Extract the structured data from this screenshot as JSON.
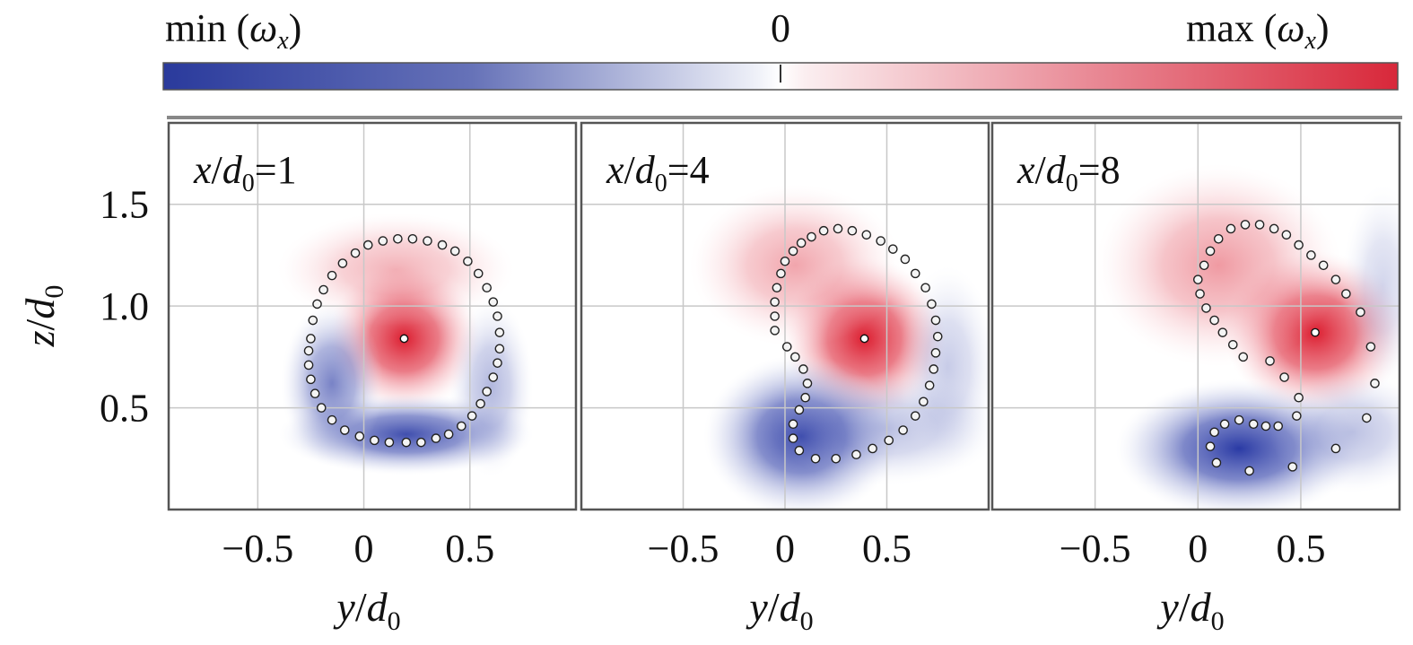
{
  "colorbar": {
    "min_label": "min (",
    "symbol": "ω",
    "subscript": "x",
    "close": ")",
    "zero_label": "0",
    "max_label": "max (",
    "neg_color": "#2838a0",
    "pos_color": "#d8283a"
  },
  "chart_data": [
    {
      "type": "heatmap",
      "panel_label": "x/d0=1",
      "title_var": "x/d",
      "title_sub": "0",
      "title_value": "=1",
      "xlabel": "y/d0",
      "ylabel": "z/d0",
      "xlim": [
        -0.92,
        1.0
      ],
      "ylim": [
        0.0,
        1.9
      ],
      "xticks": [
        -0.5,
        0,
        0.5
      ],
      "xtick_labels": [
        "−0.5",
        "0",
        "0.5"
      ],
      "yticks": [
        0.5,
        1.0,
        1.5
      ],
      "ytick_labels": [
        "0.5",
        "1.0",
        "1.5"
      ],
      "grid": true,
      "vortex_center": [
        0.19,
        0.84
      ],
      "vorticity_blobs": [
        {
          "sign": "positive",
          "center": [
            0.19,
            0.84
          ],
          "spread": [
            0.18,
            0.18
          ],
          "strength": 1.0
        },
        {
          "sign": "positive",
          "center": [
            0.15,
            1.18
          ],
          "spread": [
            0.28,
            0.14
          ],
          "strength": 0.35
        },
        {
          "sign": "negative",
          "center": [
            0.2,
            0.37
          ],
          "spread": [
            0.3,
            0.1
          ],
          "strength": 0.85
        },
        {
          "sign": "negative",
          "center": [
            -0.15,
            0.62
          ],
          "spread": [
            0.12,
            0.2
          ],
          "strength": 0.6
        },
        {
          "sign": "negative",
          "center": [
            0.6,
            0.6
          ],
          "spread": [
            0.1,
            0.22
          ],
          "strength": 0.35
        }
      ],
      "markers": [
        [
          -0.25,
          0.84
        ],
        [
          -0.24,
          0.93
        ],
        [
          -0.22,
          1.01
        ],
        [
          -0.19,
          1.08
        ],
        [
          -0.15,
          1.15
        ],
        [
          -0.1,
          1.21
        ],
        [
          -0.04,
          1.26
        ],
        [
          0.02,
          1.3
        ],
        [
          0.09,
          1.32
        ],
        [
          0.16,
          1.33
        ],
        [
          0.23,
          1.33
        ],
        [
          0.3,
          1.32
        ],
        [
          0.37,
          1.3
        ],
        [
          0.43,
          1.27
        ],
        [
          0.49,
          1.22
        ],
        [
          0.54,
          1.16
        ],
        [
          0.58,
          1.09
        ],
        [
          0.61,
          1.02
        ],
        [
          0.63,
          0.95
        ],
        [
          0.64,
          0.87
        ],
        [
          0.64,
          0.79
        ],
        [
          0.63,
          0.72
        ],
        [
          0.61,
          0.65
        ],
        [
          0.58,
          0.58
        ],
        [
          0.55,
          0.52
        ],
        [
          0.51,
          0.46
        ],
        [
          0.46,
          0.41
        ],
        [
          0.4,
          0.37
        ],
        [
          0.34,
          0.35
        ],
        [
          0.27,
          0.33
        ],
        [
          0.2,
          0.33
        ],
        [
          0.12,
          0.33
        ],
        [
          0.05,
          0.34
        ],
        [
          -0.02,
          0.36
        ],
        [
          -0.09,
          0.39
        ],
        [
          -0.15,
          0.44
        ],
        [
          -0.2,
          0.5
        ],
        [
          -0.23,
          0.57
        ],
        [
          -0.25,
          0.64
        ],
        [
          -0.26,
          0.71
        ],
        [
          -0.26,
          0.78
        ]
      ]
    },
    {
      "type": "heatmap",
      "panel_label": "x/d0=4",
      "title_var": "x/d",
      "title_sub": "0",
      "title_value": "=4",
      "xlabel": "y/d0",
      "ylabel": "z/d0",
      "xlim": [
        -1.0,
        1.0
      ],
      "ylim": [
        0.0,
        1.9
      ],
      "xticks": [
        -0.5,
        0,
        0.5
      ],
      "xtick_labels": [
        "−0.5",
        "0",
        "0.5"
      ],
      "yticks": [
        0.5,
        1.0,
        1.5
      ],
      "ytick_labels": [
        "0.5",
        "1.0",
        "1.5"
      ],
      "grid": true,
      "vortex_center": [
        0.39,
        0.84
      ],
      "vorticity_blobs": [
        {
          "sign": "positive",
          "center": [
            0.39,
            0.84
          ],
          "spread": [
            0.2,
            0.2
          ],
          "strength": 1.0
        },
        {
          "sign": "positive",
          "center": [
            0.05,
            1.2
          ],
          "spread": [
            0.26,
            0.2
          ],
          "strength": 0.4
        },
        {
          "sign": "negative",
          "center": [
            0.08,
            0.36
          ],
          "spread": [
            0.24,
            0.2
          ],
          "strength": 0.9
        },
        {
          "sign": "negative",
          "center": [
            0.5,
            0.4
          ],
          "spread": [
            0.28,
            0.14
          ],
          "strength": 0.3
        },
        {
          "sign": "negative",
          "center": [
            0.8,
            0.7
          ],
          "spread": [
            0.12,
            0.25
          ],
          "strength": 0.25
        }
      ],
      "markers": [
        [
          -0.05,
          0.88
        ],
        [
          -0.05,
          0.95
        ],
        [
          -0.05,
          1.02
        ],
        [
          -0.04,
          1.09
        ],
        [
          -0.02,
          1.16
        ],
        [
          0.0,
          1.22
        ],
        [
          0.04,
          1.27
        ],
        [
          0.08,
          1.31
        ],
        [
          0.13,
          1.34
        ],
        [
          0.19,
          1.37
        ],
        [
          0.26,
          1.38
        ],
        [
          0.33,
          1.37
        ],
        [
          0.4,
          1.35
        ],
        [
          0.47,
          1.32
        ],
        [
          0.53,
          1.28
        ],
        [
          0.59,
          1.23
        ],
        [
          0.64,
          1.16
        ],
        [
          0.69,
          1.09
        ],
        [
          0.72,
          1.01
        ],
        [
          0.74,
          0.93
        ],
        [
          0.75,
          0.85
        ],
        [
          0.74,
          0.77
        ],
        [
          0.73,
          0.69
        ],
        [
          0.71,
          0.61
        ],
        [
          0.68,
          0.53
        ],
        [
          0.64,
          0.46
        ],
        [
          0.58,
          0.39
        ],
        [
          0.51,
          0.34
        ],
        [
          0.43,
          0.3
        ],
        [
          0.35,
          0.27
        ],
        [
          0.25,
          0.25
        ],
        [
          0.15,
          0.25
        ],
        [
          0.07,
          0.29
        ],
        [
          0.04,
          0.35
        ],
        [
          0.04,
          0.42
        ],
        [
          0.07,
          0.49
        ],
        [
          0.1,
          0.55
        ],
        [
          0.11,
          0.62
        ],
        [
          0.09,
          0.69
        ],
        [
          0.05,
          0.75
        ],
        [
          0.01,
          0.8
        ]
      ]
    },
    {
      "type": "heatmap",
      "panel_label": "x/d0=8",
      "title_var": "x/d",
      "title_sub": "0",
      "title_value": "=8",
      "xlabel": "y/d0",
      "ylabel": "z/d0",
      "xlim": [
        -1.0,
        0.98
      ],
      "ylim": [
        0.0,
        1.9
      ],
      "xticks": [
        -0.5,
        0,
        0.5
      ],
      "xtick_labels": [
        "−0.5",
        "0",
        "0.5"
      ],
      "yticks": [
        0.5,
        1.0,
        1.5
      ],
      "ytick_labels": [
        "0.5",
        "1.0",
        "1.5"
      ],
      "grid": true,
      "vortex_center": [
        0.57,
        0.87
      ],
      "vorticity_blobs": [
        {
          "sign": "positive",
          "center": [
            0.57,
            0.87
          ],
          "spread": [
            0.22,
            0.2
          ],
          "strength": 1.0
        },
        {
          "sign": "positive",
          "center": [
            0.1,
            1.2
          ],
          "spread": [
            0.3,
            0.25
          ],
          "strength": 0.45
        },
        {
          "sign": "negative",
          "center": [
            0.2,
            0.3
          ],
          "spread": [
            0.3,
            0.17
          ],
          "strength": 0.95
        },
        {
          "sign": "negative",
          "center": [
            0.75,
            0.38
          ],
          "spread": [
            0.2,
            0.15
          ],
          "strength": 0.3
        },
        {
          "sign": "negative",
          "center": [
            0.9,
            1.1
          ],
          "spread": [
            0.1,
            0.25
          ],
          "strength": 0.2
        }
      ],
      "markers": [
        [
          0.03,
          1.2
        ],
        [
          0.0,
          1.13
        ],
        [
          0.01,
          1.06
        ],
        [
          0.04,
          0.99
        ],
        [
          0.08,
          0.93
        ],
        [
          0.12,
          0.87
        ],
        [
          0.17,
          0.81
        ],
        [
          0.22,
          0.75
        ],
        [
          0.06,
          1.27
        ],
        [
          0.1,
          1.33
        ],
        [
          0.16,
          1.38
        ],
        [
          0.23,
          1.4
        ],
        [
          0.3,
          1.4
        ],
        [
          0.37,
          1.38
        ],
        [
          0.43,
          1.35
        ],
        [
          0.49,
          1.3
        ],
        [
          0.55,
          1.25
        ],
        [
          0.61,
          1.2
        ],
        [
          0.67,
          1.13
        ],
        [
          0.72,
          1.06
        ],
        [
          0.79,
          0.97
        ],
        [
          0.84,
          0.8
        ],
        [
          0.86,
          0.62
        ],
        [
          0.82,
          0.45
        ],
        [
          0.67,
          0.3
        ],
        [
          0.46,
          0.21
        ],
        [
          0.25,
          0.19
        ],
        [
          0.09,
          0.23
        ],
        [
          0.06,
          0.31
        ],
        [
          0.08,
          0.38
        ],
        [
          0.13,
          0.42
        ],
        [
          0.2,
          0.44
        ],
        [
          0.27,
          0.42
        ],
        [
          0.33,
          0.41
        ],
        [
          0.39,
          0.41
        ],
        [
          0.48,
          0.46
        ],
        [
          0.49,
          0.55
        ],
        [
          0.42,
          0.65
        ],
        [
          0.35,
          0.73
        ]
      ]
    }
  ]
}
